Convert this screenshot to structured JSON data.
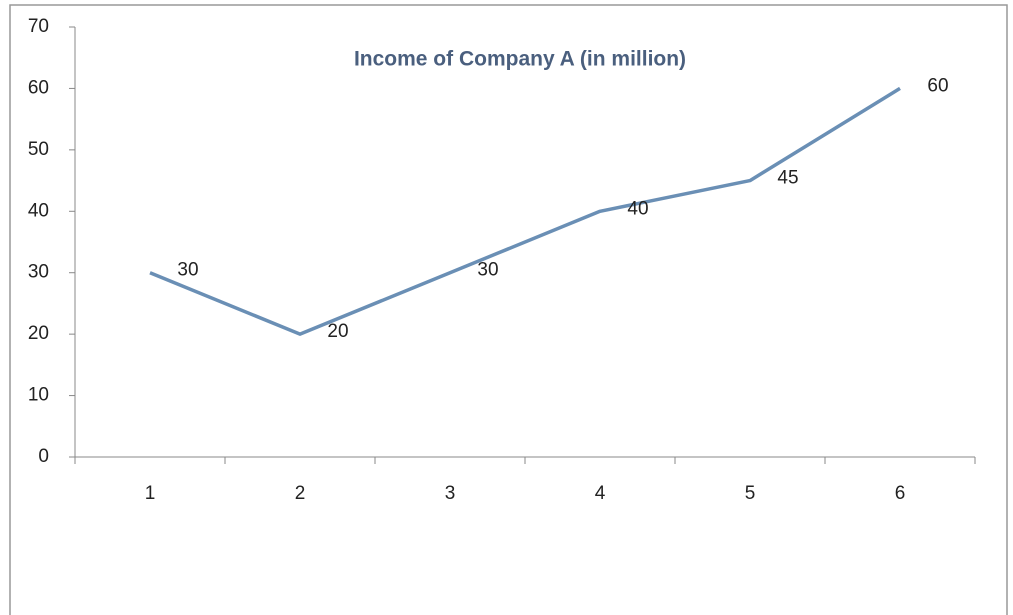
{
  "chart_data": {
    "type": "line",
    "title": "Income of Company A (in million)",
    "categories": [
      "1",
      "2",
      "3",
      "4",
      "5",
      "6"
    ],
    "series": [
      {
        "name": "Income",
        "color": "#6a8fb5",
        "values": [
          30,
          20,
          30,
          40,
          45,
          60
        ]
      }
    ],
    "ylim": [
      0,
      70
    ],
    "yticks": [
      0,
      10,
      20,
      30,
      40,
      50,
      60,
      70
    ],
    "grid": false,
    "legend": false,
    "data_labels": true
  }
}
